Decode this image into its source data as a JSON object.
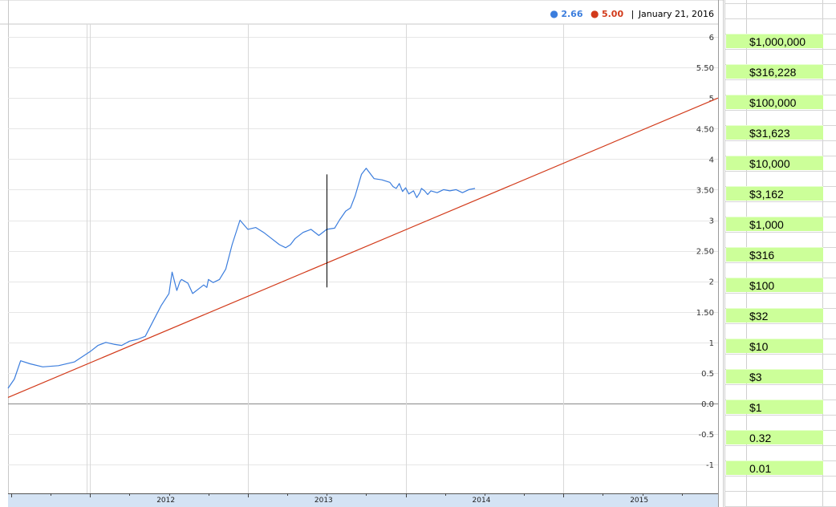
{
  "legend": {
    "blue_value": "2.66",
    "red_value": "5.00",
    "date": "January 21, 2016",
    "blue_color": "#3b7ddd",
    "red_color": "#d23a1a"
  },
  "chart_data": {
    "type": "line",
    "title": "",
    "xlabel": "",
    "ylabel": "",
    "x_ticks": [
      "2012",
      "2013",
      "2014",
      "2015"
    ],
    "y_ticks": [
      "6",
      "5.50",
      "5",
      "4.50",
      "4",
      "3.50",
      "3",
      "2.50",
      "2",
      "1.50",
      "1",
      "0.5",
      "0.0",
      "-0.5",
      "-1"
    ],
    "y_range": [
      -1.5,
      6.2
    ],
    "x_range": [
      2011.48,
      2015.98
    ],
    "grid": true,
    "legend_position": "top-right",
    "series": [
      {
        "color": "#3b7ddd",
        "x": [
          2011.48,
          2011.52,
          2011.56,
          2011.62,
          2011.7,
          2011.8,
          2011.9,
          2012.0,
          2012.05,
          2012.1,
          2012.15,
          2012.2,
          2012.25,
          2012.3,
          2012.35,
          2012.4,
          2012.45,
          2012.5,
          2012.52,
          2012.55,
          2012.57,
          2012.58,
          2012.6,
          2012.62,
          2012.65,
          2012.7,
          2012.72,
          2012.74,
          2012.75,
          2012.78,
          2012.82,
          2012.86,
          2012.9,
          2012.95,
          2013.0,
          2013.05,
          2013.1,
          2013.15,
          2013.2,
          2013.24,
          2013.27,
          2013.3,
          2013.35,
          2013.4,
          2013.45,
          2013.5,
          2013.55,
          2013.58,
          2013.62,
          2013.65,
          2013.68,
          2013.72,
          2013.75,
          2013.8,
          2013.85,
          2013.9,
          2013.92,
          2013.94,
          2013.96,
          2013.98,
          2014.0,
          2014.02,
          2014.05,
          2014.07,
          2014.09,
          2014.1,
          2014.12,
          2014.14,
          2014.16,
          2014.2,
          2014.24,
          2014.28,
          2014.32,
          2014.36,
          2014.4,
          2014.44
        ],
        "y": [
          0.25,
          0.4,
          0.7,
          0.65,
          0.6,
          0.62,
          0.68,
          0.85,
          0.95,
          1.0,
          0.97,
          0.95,
          1.02,
          1.05,
          1.1,
          1.35,
          1.6,
          1.8,
          2.15,
          1.85,
          2.0,
          2.03,
          2.0,
          1.97,
          1.8,
          1.9,
          1.94,
          1.9,
          2.03,
          1.98,
          2.03,
          2.2,
          2.6,
          3.0,
          2.85,
          2.88,
          2.8,
          2.7,
          2.6,
          2.55,
          2.6,
          2.7,
          2.8,
          2.85,
          2.75,
          2.85,
          2.87,
          3.0,
          3.15,
          3.2,
          3.4,
          3.75,
          3.85,
          3.68,
          3.66,
          3.62,
          3.55,
          3.52,
          3.6,
          3.47,
          3.53,
          3.43,
          3.48,
          3.37,
          3.45,
          3.52,
          3.48,
          3.42,
          3.48,
          3.45,
          3.5,
          3.48,
          3.5,
          3.45,
          3.5,
          3.52
        ]
      },
      {
        "color": "#d23a1a",
        "x": [
          2011.48,
          2015.98
        ],
        "y": [
          0.1,
          5.0
        ]
      }
    ],
    "annotations": [
      {
        "type": "vertical-line",
        "x": 2013.5,
        "y_from": 1.9,
        "y_to": 3.75
      }
    ]
  },
  "sheet": {
    "cells": [
      "$1,000,000",
      "$316,228",
      "$100,000",
      "$31,623",
      "$10,000",
      "$3,162",
      "$1,000",
      "$316",
      "$100",
      "$32",
      "$10",
      "$3",
      "$1",
      "0.32",
      "0.01"
    ],
    "cell_color": "#ccff99"
  }
}
